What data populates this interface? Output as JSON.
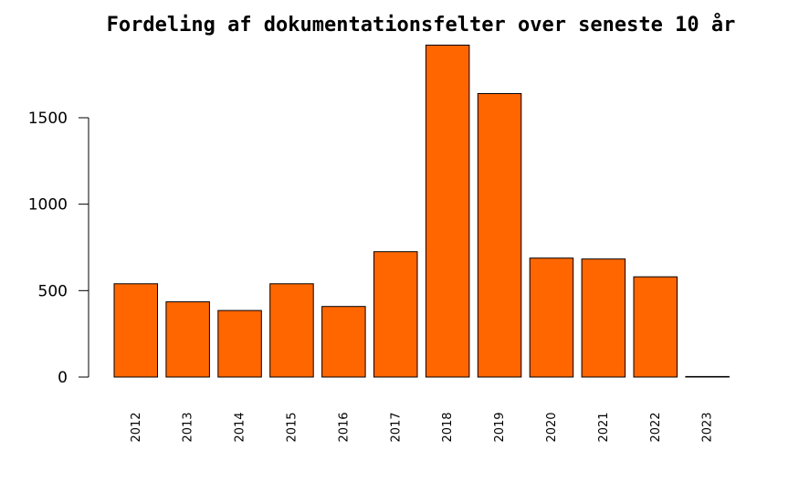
{
  "chart_data": {
    "type": "bar",
    "title": "Fordeling af dokumentationsfelter over seneste 10 år",
    "xlabel": "",
    "ylabel": "",
    "categories": [
      "2012",
      "2013",
      "2014",
      "2015",
      "2016",
      "2017",
      "2018",
      "2019",
      "2020",
      "2021",
      "2022",
      "2023"
    ],
    "values": [
      540,
      435,
      385,
      540,
      408,
      725,
      1920,
      1640,
      688,
      683,
      580,
      3
    ],
    "yticks": [
      0,
      500,
      1000,
      1500
    ],
    "ylim": [
      0,
      1920
    ],
    "grid": false,
    "legend": "none",
    "bar_color": "#FF6600",
    "edge_color": "#000000"
  }
}
